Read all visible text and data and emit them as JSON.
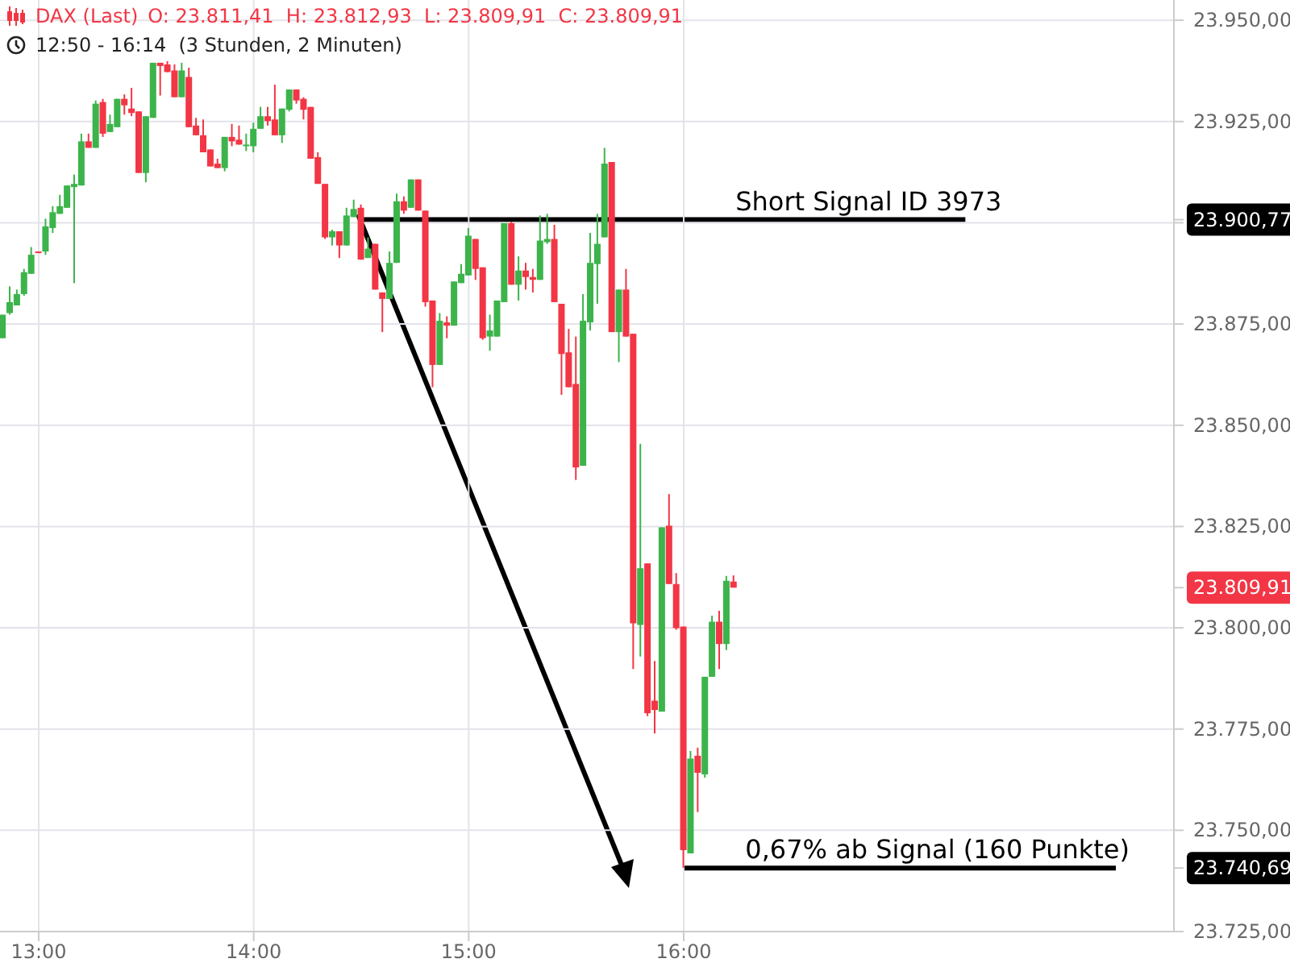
{
  "chart_data": {
    "type": "candlestick",
    "title": "DAX (Last)",
    "subtitle": "O: 23.811,41  H: 23.812,93  L: 23.809,91  C: 23.809,91",
    "annotations": [
      "12:50 - 16:14  (3 Stunden, 2 Minuten)",
      {
        "text": "Short Signal  ID 3973",
        "x": 16.86,
        "y": 23900.77
      },
      {
        "text": "0,67% ab Signal (160 Punkte)",
        "x": 17.18,
        "y": 23740.69
      }
    ],
    "xlim": [
      12.82,
      18.28
    ],
    "xticks": [
      {
        "value": 13,
        "label": "13:00"
      },
      {
        "value": 14,
        "label": "14:00"
      },
      {
        "value": 15,
        "label": "15:00"
      },
      {
        "value": 16,
        "label": "16:00"
      }
    ],
    "ylim": [
      23725,
      23955
    ],
    "yticks": [
      {
        "value": 23725,
        "label": "23.725,00"
      },
      {
        "value": 23750,
        "label": "23.750,00"
      },
      {
        "value": 23775,
        "label": "23.775,00"
      },
      {
        "value": 23800,
        "label": "23.800,00"
      },
      {
        "value": 23825,
        "label": "23.825,00"
      },
      {
        "value": 23850,
        "label": "23.850,00"
      },
      {
        "value": 23875,
        "label": "23.875,00"
      },
      {
        "value": 23900,
        "label": null
      },
      {
        "value": 23900.77,
        "label": "23.900,77"
      },
      {
        "value": 23809.91,
        "label": "23.809,91"
      },
      {
        "value": 23740.69,
        "label": "23.740,69"
      },
      {
        "value": 23925,
        "label": "23.925,00"
      },
      {
        "value": 23950,
        "label": "23.950,00"
      }
    ],
    "grid": true,
    "series": [
      {
        "x": [
          12.8333,
          12.8667,
          12.9,
          12.9333,
          12.9667,
          13,
          13.0333,
          13.0667,
          13.1,
          13.1333,
          13.1667,
          13.2,
          13.2333,
          13.2667,
          13.3,
          13.3333,
          13.3667,
          13.4,
          13.4333,
          13.4667,
          13.5,
          13.5333,
          13.5667,
          13.6,
          13.6333,
          13.6667,
          13.7,
          13.7333,
          13.7667,
          13.8,
          13.8333,
          13.8667,
          13.9,
          13.9333,
          13.9667,
          14,
          14.0333,
          14.0667,
          14.1,
          14.1333,
          14.1667,
          14.2,
          14.2333,
          14.2667,
          14.3,
          14.3333,
          14.3667,
          14.4,
          14.4333,
          14.4667,
          14.5,
          14.5333,
          14.5667,
          14.6,
          14.6333,
          14.6667,
          14.7,
          14.7333,
          14.7667,
          14.8,
          14.8333,
          14.8667,
          14.9,
          14.9333,
          14.9667,
          15,
          15.0333,
          15.0667,
          15.1,
          15.1333,
          15.1667,
          15.2,
          15.2333,
          15.2667,
          15.3,
          15.3333,
          15.3667,
          15.4,
          15.4333,
          15.4667,
          15.5,
          15.5333,
          15.5667,
          15.6,
          15.6333,
          15.6667,
          15.7,
          15.7333,
          15.7667,
          15.8,
          15.8333,
          15.8667,
          15.9,
          15.9333,
          15.9667,
          16,
          16.0333,
          16.0667,
          16.1,
          16.1333,
          16.1667,
          16.2,
          16.2333
        ],
        "ohlc": [
          [
            23871.5,
            23877.3,
            23871.5,
            23877.3
          ],
          [
            23877.7,
            23884.3,
            23877.3,
            23880.4
          ],
          [
            23879.6,
            23883.5,
            23879.6,
            23882.4
          ],
          [
            23882.4,
            23888.6,
            23882.0,
            23887.8
          ],
          [
            23887.4,
            23894.0,
            23887.4,
            23892.1
          ],
          [
            23892.9,
            23892.9,
            23892.5,
            23892.7
          ],
          [
            23892.9,
            23901.0,
            23892.1,
            23899.1
          ],
          [
            23898.7,
            23904.1,
            23897.5,
            23902.6
          ],
          [
            23902.2,
            23906.9,
            23902.2,
            23904.1
          ],
          [
            23903.7,
            23909.2,
            23903.7,
            23909.2
          ],
          [
            23908.8,
            23911.9,
            23885.1,
            23909.6
          ],
          [
            23909.2,
            23922.0,
            23909.2,
            23920.1
          ],
          [
            23920.1,
            23922.0,
            23918.5,
            23918.5
          ],
          [
            23918.5,
            23930.2,
            23918.5,
            23929.4
          ],
          [
            23929.8,
            23930.6,
            23921.2,
            23922.0
          ],
          [
            23922.4,
            23926.7,
            23922.4,
            23924.4
          ],
          [
            23923.6,
            23930.6,
            23923.6,
            23930.6
          ],
          [
            23930.6,
            23931.7,
            23926.7,
            23929.0
          ],
          [
            23928.2,
            23933.3,
            23926.3,
            23927.1
          ],
          [
            23927.5,
            23927.5,
            23912.3,
            23912.3
          ],
          [
            23912.3,
            23926.3,
            23910.0,
            23926.3
          ],
          [
            23925.9,
            23939.5,
            23925.9,
            23939.5
          ],
          [
            23939.5,
            23939.5,
            23931.4,
            23938.7
          ],
          [
            23939.1,
            23939.9,
            23937.2,
            23937.2
          ],
          [
            23937.6,
            23939.1,
            23931.0,
            23931.0
          ],
          [
            23931.0,
            23939.5,
            23931.0,
            23937.6
          ],
          [
            23936.0,
            23938.3,
            23923.6,
            23923.6
          ],
          [
            23924.0,
            23925.9,
            23921.6,
            23921.6
          ],
          [
            23921.6,
            23925.5,
            23917.4,
            23917.4
          ],
          [
            23918.1,
            23918.1,
            23913.9,
            23913.9
          ],
          [
            23914.6,
            23915.8,
            23913.5,
            23913.5
          ],
          [
            23913.5,
            23921.2,
            23912.7,
            23921.2
          ],
          [
            23921.2,
            23924.4,
            23918.9,
            23920.1
          ],
          [
            23920.5,
            23924.0,
            23919.3,
            23919.3
          ],
          [
            23919.1,
            23922.0,
            23917.7,
            23919.3
          ],
          [
            23918.9,
            23924.7,
            23917.4,
            23923.2
          ],
          [
            23923.2,
            23928.6,
            23923.2,
            23926.3
          ],
          [
            23926.3,
            23928.6,
            23924.0,
            23925.1
          ],
          [
            23925.5,
            23934.1,
            23921.6,
            23921.6
          ],
          [
            23921.6,
            23928.2,
            23919.7,
            23928.2
          ],
          [
            23927.9,
            23932.9,
            23927.5,
            23932.9
          ],
          [
            23932.9,
            23932.9,
            23929.4,
            23930.2
          ],
          [
            23930.6,
            23931.0,
            23925.5,
            23927.9
          ],
          [
            23928.6,
            23928.6,
            23915.8,
            23915.8
          ],
          [
            23916.2,
            23917.4,
            23909.6,
            23909.6
          ],
          [
            23909.6,
            23909.6,
            23896.0,
            23896.4
          ],
          [
            23896.4,
            23898.3,
            23894.4,
            23897.9
          ],
          [
            23897.9,
            23897.9,
            23891.3,
            23894.4
          ],
          [
            23894.4,
            23903.7,
            23894.4,
            23901.8
          ],
          [
            23901.4,
            23905.7,
            23901.4,
            23903.4
          ],
          [
            23903.7,
            23904.5,
            23890.9,
            23890.9
          ],
          [
            23891.3,
            23896.4,
            23891.3,
            23893.6
          ],
          [
            23894.8,
            23894.8,
            23883.5,
            23883.5
          ],
          [
            23882.8,
            23882.8,
            23873.0,
            23881.2
          ],
          [
            23881.2,
            23892.9,
            23881.2,
            23890.1
          ],
          [
            23890.1,
            23907.2,
            23890.1,
            23905.3
          ],
          [
            23905.3,
            23906.5,
            23902.2,
            23903.0
          ],
          [
            23903.7,
            23910.7,
            23903.7,
            23910.7
          ],
          [
            23910.7,
            23910.7,
            23903.0,
            23903.0
          ],
          [
            23903.0,
            23903.0,
            23879.3,
            23880.4
          ],
          [
            23880.8,
            23880.8,
            23859.4,
            23864.9
          ],
          [
            23864.9,
            23877.7,
            23864.9,
            23875.8
          ],
          [
            23875.4,
            23876.9,
            23871.5,
            23874.6
          ],
          [
            23874.6,
            23885.5,
            23874.6,
            23885.5
          ],
          [
            23885.1,
            23889.8,
            23885.1,
            23887.4
          ],
          [
            23887.0,
            23898.7,
            23887.0,
            23896.8
          ],
          [
            23896.0,
            23896.0,
            23885.9,
            23888.6
          ],
          [
            23889.0,
            23889.0,
            23871.1,
            23871.5
          ],
          [
            23871.9,
            23877.3,
            23868.4,
            23873.4
          ],
          [
            23871.9,
            23880.8,
            23871.9,
            23880.8
          ],
          [
            23880.4,
            23899.9,
            23880.4,
            23899.9
          ],
          [
            23899.9,
            23900.3,
            23884.7,
            23884.7
          ],
          [
            23884.7,
            23891.7,
            23880.8,
            23888.2
          ],
          [
            23888.2,
            23890.1,
            23883.5,
            23886.6
          ],
          [
            23886.6,
            23888.6,
            23882.8,
            23885.9
          ],
          [
            23885.9,
            23901.8,
            23885.9,
            23895.6
          ],
          [
            23895.2,
            23902.2,
            23894.8,
            23896.0
          ],
          [
            23896.0,
            23899.5,
            23880.4,
            23880.4
          ],
          [
            23880.0,
            23880.0,
            23857.5,
            23867.6
          ],
          [
            23868.0,
            23873.8,
            23859.4,
            23859.4
          ],
          [
            23860.2,
            23871.9,
            23836.5,
            23839.6
          ],
          [
            23840.0,
            23882.4,
            23840.0,
            23875.8
          ],
          [
            23875.4,
            23897.5,
            23873.4,
            23890.1
          ],
          [
            23889.8,
            23902.2,
            23880.0,
            23894.8
          ],
          [
            23896.4,
            23918.5,
            23896.4,
            23914.6
          ],
          [
            23915.0,
            23915.0,
            23873.0,
            23873.0
          ],
          [
            23873.0,
            23883.5,
            23865.6,
            23883.5
          ],
          [
            23883.5,
            23888.6,
            23871.9,
            23871.9
          ],
          [
            23872.6,
            23872.6,
            23789.8,
            23801.1
          ],
          [
            23800.7,
            23845.4,
            23792.9,
            23814.7
          ],
          [
            23815.9,
            23815.9,
            23778.2,
            23778.9
          ],
          [
            23782.0,
            23791.8,
            23773.9,
            23779.7
          ],
          [
            23779.3,
            23824.8,
            23779.3,
            23824.8
          ],
          [
            23825.2,
            23833.0,
            23810.8,
            23810.8
          ],
          [
            23810.8,
            23813.5,
            23799.5,
            23799.9
          ],
          [
            23800.3,
            23800.3,
            23740.7,
            23745.1
          ],
          [
            23744.3,
            23769.6,
            23744.3,
            23767.7
          ],
          [
            23768.4,
            23770.4,
            23754.5,
            23764.2
          ],
          [
            23763.8,
            23787.9,
            23763.0,
            23787.9
          ],
          [
            23787.9,
            23803.0,
            23787.9,
            23801.5
          ],
          [
            23801.5,
            23804.2,
            23789.8,
            23796.0
          ],
          [
            23796.0,
            23812.8,
            23794.5,
            23811.6
          ],
          [
            23811.41,
            23812.93,
            23809.91,
            23809.91
          ]
        ],
        "colors": [
          "#3cb44b",
          "#3cb44b",
          "#3cb44b",
          "#3cb44b",
          "#3cb44b",
          "#f23645",
          "#3cb44b",
          "#3cb44b",
          "#3cb44b",
          "#3cb44b",
          "#3cb44b",
          "#3cb44b",
          "#f23645",
          "#3cb44b",
          "#f23645",
          "#3cb44b",
          "#3cb44b",
          "#f23645",
          "#f23645",
          "#f23645",
          "#3cb44b",
          "#3cb44b",
          "#f23645",
          "#f23645",
          "#f23645",
          "#3cb44b",
          "#f23645",
          "#f23645",
          "#f23645",
          "#f23645",
          "#f23645",
          "#3cb44b",
          "#f23645",
          "#f23645",
          "#3cb44b",
          "#3cb44b",
          "#3cb44b",
          "#f23645",
          "#f23645",
          "#3cb44b",
          "#3cb44b",
          "#f23645",
          "#f23645",
          "#f23645",
          "#f23645",
          "#f23645",
          "#3cb44b",
          "#f23645",
          "#3cb44b",
          "#3cb44b",
          "#f23645",
          "#3cb44b",
          "#f23645",
          "#f23645",
          "#3cb44b",
          "#3cb44b",
          "#f23645",
          "#3cb44b",
          "#f23645",
          "#f23645",
          "#f23645",
          "#3cb44b",
          "#f23645",
          "#3cb44b",
          "#3cb44b",
          "#3cb44b",
          "#f23645",
          "#f23645",
          "#3cb44b",
          "#3cb44b",
          "#3cb44b",
          "#f23645",
          "#3cb44b",
          "#f23645",
          "#f23645",
          "#3cb44b",
          "#3cb44b",
          "#f23645",
          "#f23645",
          "#f23645",
          "#f23645",
          "#3cb44b",
          "#3cb44b",
          "#3cb44b",
          "#3cb44b",
          "#f23645",
          "#3cb44b",
          "#f23645",
          "#f23645",
          "#3cb44b",
          "#f23645",
          "#f23645",
          "#3cb44b",
          "#f23645",
          "#f23645",
          "#f23645",
          "#3cb44b",
          "#f23645",
          "#3cb44b",
          "#3cb44b",
          "#f23645",
          "#3cb44b",
          "#f23645"
        ]
      },
      {
        "type": "line",
        "color": "#000000",
        "x": [
          14.5,
          17.31
        ],
        "values": [
          23900.77,
          23900.77
        ]
      },
      {
        "type": "line",
        "color": "#000000",
        "x": [
          16,
          18.01
        ],
        "values": [
          23740.69,
          23740.69
        ]
      }
    ]
  }
}
